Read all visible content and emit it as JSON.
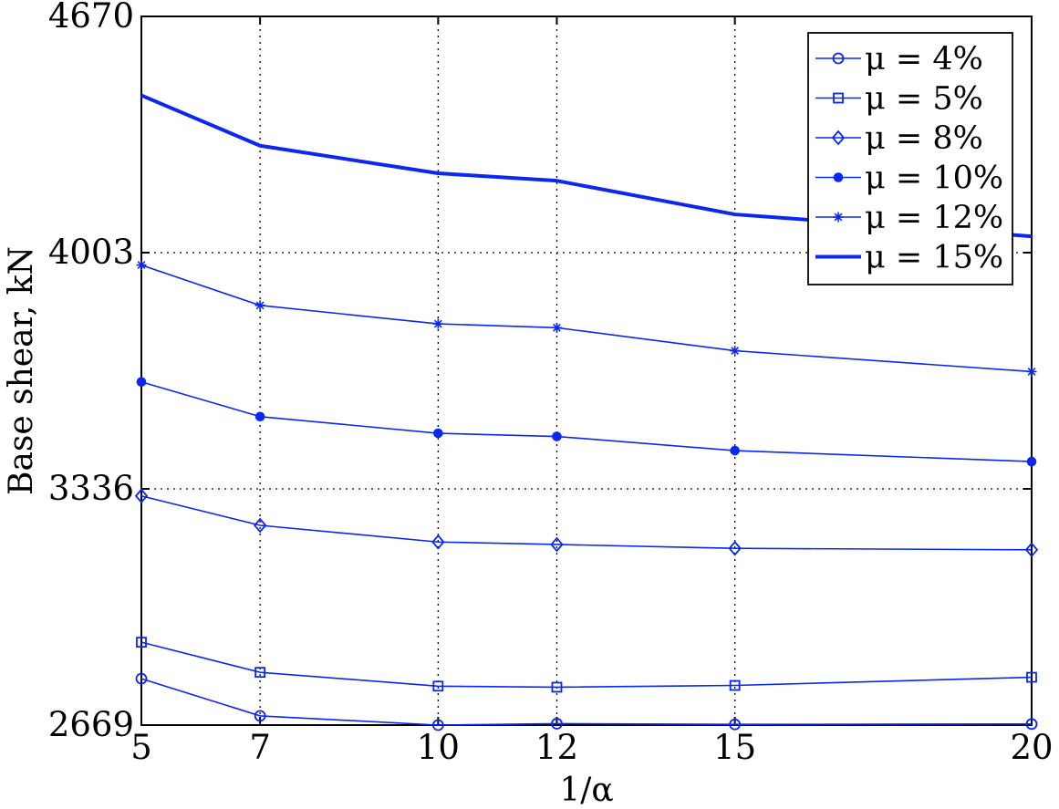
{
  "chart_data": {
    "type": "line",
    "title": "",
    "xlabel": "1/α",
    "ylabel": "Base shear, kN",
    "x": [
      5,
      7,
      10,
      12,
      15,
      20
    ],
    "x_tick_labels": [
      "5",
      "7",
      "10",
      "12",
      "15",
      "20"
    ],
    "y_tick_values": [
      2669,
      3336,
      4003,
      4670
    ],
    "y_tick_labels": [
      "2669",
      "3336",
      "4003",
      "4670"
    ],
    "ylim": [
      2669,
      4670
    ],
    "xlim": [
      5,
      20
    ],
    "grid": true,
    "legend_position": "top-right",
    "color": "#0a28f0",
    "series": [
      {
        "name": "μ = 4%",
        "marker": "circle",
        "values": [
          2800,
          2695,
          2669,
          2673,
          2671,
          2672
        ]
      },
      {
        "name": "μ = 5%",
        "marker": "square",
        "values": [
          2903,
          2818,
          2779,
          2776,
          2781,
          2804
        ]
      },
      {
        "name": "μ = 8%",
        "marker": "diamond",
        "values": [
          3316,
          3233,
          3186,
          3179,
          3168,
          3164
        ]
      },
      {
        "name": "μ = 10%",
        "marker": "filled-circle",
        "values": [
          3638,
          3540,
          3493,
          3484,
          3444,
          3413
        ]
      },
      {
        "name": "μ = 12%",
        "marker": "star",
        "values": [
          3968,
          3854,
          3802,
          3791,
          3726,
          3667
        ]
      },
      {
        "name": "μ = 15%",
        "marker": "none",
        "thick": true,
        "values": [
          4447,
          4305,
          4227,
          4206,
          4111,
          4049
        ]
      }
    ]
  }
}
